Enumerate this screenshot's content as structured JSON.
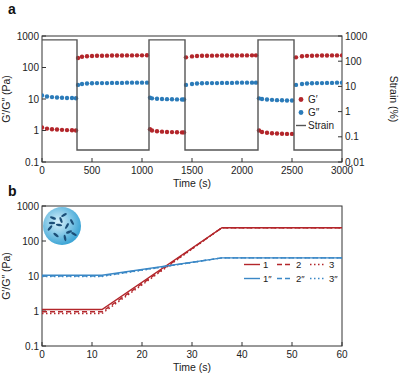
{
  "chart_data": [
    {
      "type": "line",
      "title": "a",
      "x_label": "Time (s)",
      "y_label": "G′/G″ (Pa)",
      "y2_label": "Strain (%)",
      "x": [
        0,
        50,
        100,
        150,
        200,
        250,
        300,
        340,
        360,
        400,
        450,
        500,
        550,
        600,
        650,
        700,
        750,
        800,
        850,
        900,
        950,
        1000,
        1050,
        1080,
        1100,
        1150,
        1200,
        1250,
        1300,
        1350,
        1400,
        1420,
        1440,
        1500,
        1550,
        1600,
        1650,
        1700,
        1750,
        1800,
        1850,
        1900,
        1950,
        2000,
        2050,
        2100,
        2140,
        2170,
        2200,
        2250,
        2300,
        2350,
        2400,
        2450,
        2500,
        2540,
        2600,
        2650,
        2700,
        2750,
        2800,
        2850,
        2900,
        2950,
        3000
      ],
      "xlim": [
        0,
        3000
      ],
      "xticks": [
        0,
        500,
        1000,
        1500,
        2000,
        2500,
        3000
      ],
      "ylim": [
        0.1,
        1000
      ],
      "yticks": [
        0.1,
        1,
        10,
        100,
        1000
      ],
      "y2lim": [
        0.01,
        1000
      ],
      "y2ticks": [
        0.01,
        0.1,
        1,
        10,
        100,
        1000
      ],
      "log": "y",
      "grid": false,
      "legend": "right",
      "series": [
        {
          "name": "G′",
          "color": "#b3262b",
          "type": "scatter",
          "marker": "circle",
          "values": [
            1.25,
            1.15,
            1.1,
            1.07,
            1.05,
            1.03,
            1.02,
            1.0,
            200,
            220,
            228,
            232,
            235,
            237,
            238,
            240,
            240,
            241,
            242,
            242,
            243,
            243,
            244,
            1.1,
            1.0,
            0.95,
            0.92,
            0.9,
            0.89,
            0.88,
            0.87,
            0.87,
            210,
            225,
            232,
            235,
            237,
            238,
            239,
            240,
            240,
            241,
            241,
            242,
            242,
            243,
            243,
            1.0,
            0.9,
            0.85,
            0.82,
            0.8,
            0.79,
            0.78,
            0.78,
            210,
            228,
            234,
            237,
            239,
            240,
            241,
            242,
            242,
            243
          ]
        },
        {
          "name": "G″",
          "color": "#2b7bb9",
          "type": "scatter",
          "marker": "circle",
          "values": [
            13,
            12,
            11.5,
            11.2,
            11,
            10.8,
            10.7,
            10.6,
            28,
            30,
            31,
            31.5,
            32,
            32,
            32,
            32.5,
            32.5,
            32.5,
            33,
            33,
            33,
            33,
            33,
            11,
            10.5,
            10.2,
            10,
            9.9,
            9.8,
            9.7,
            9.6,
            9.6,
            28,
            30,
            31,
            31.5,
            32,
            32,
            32,
            32.5,
            32.5,
            32.5,
            33,
            33,
            33,
            33,
            33,
            10.5,
            10,
            9.6,
            9.4,
            9.2,
            9.1,
            9,
            9,
            28,
            30,
            31,
            31.5,
            32,
            32,
            32.5,
            32.5,
            33,
            33
          ]
        },
        {
          "name": "Strain",
          "color": "#555555",
          "type": "line",
          "line_style": "solid",
          "axis": "y2",
          "x": [
            0,
            350,
            350,
            1070,
            1070,
            1430,
            1430,
            2160,
            2160,
            2520,
            2520,
            3000
          ],
          "values": [
            700,
            700,
            0.03,
            0.03,
            700,
            700,
            0.03,
            0.03,
            700,
            700,
            0.03,
            0.03
          ]
        }
      ]
    },
    {
      "type": "line",
      "title": "b",
      "x_label": "Time (s)",
      "y_label": "G′/G″ (Pa)",
      "x": [
        0,
        12,
        36,
        60
      ],
      "xlim": [
        0,
        60
      ],
      "xticks": [
        0,
        10,
        20,
        30,
        40,
        50,
        60
      ],
      "ylim": [
        0.1,
        1000
      ],
      "yticks": [
        0.1,
        1,
        10,
        100,
        1000
      ],
      "log": "y",
      "grid": false,
      "legend": "right",
      "series": [
        {
          "name": "1",
          "color": "#b3262b",
          "line_style": "solid",
          "values": [
            1.1,
            1.1,
            240,
            240
          ]
        },
        {
          "name": "2",
          "color": "#b3262b",
          "line_style": "dashed",
          "values": [
            0.95,
            0.95,
            240,
            240
          ]
        },
        {
          "name": "3",
          "color": "#b3262b",
          "line_style": "dotted",
          "values": [
            0.85,
            0.85,
            240,
            240
          ]
        },
        {
          "name": "1″",
          "color": "#3b88c6",
          "line_style": "solid",
          "values": [
            10.5,
            10.5,
            33,
            33
          ]
        },
        {
          "name": "2″",
          "color": "#3b88c6",
          "line_style": "dashed",
          "values": [
            10,
            10,
            33,
            33
          ]
        },
        {
          "name": "3″",
          "color": "#3b88c6",
          "line_style": "dotted",
          "values": [
            9.7,
            9.7,
            33,
            33
          ]
        }
      ]
    }
  ]
}
